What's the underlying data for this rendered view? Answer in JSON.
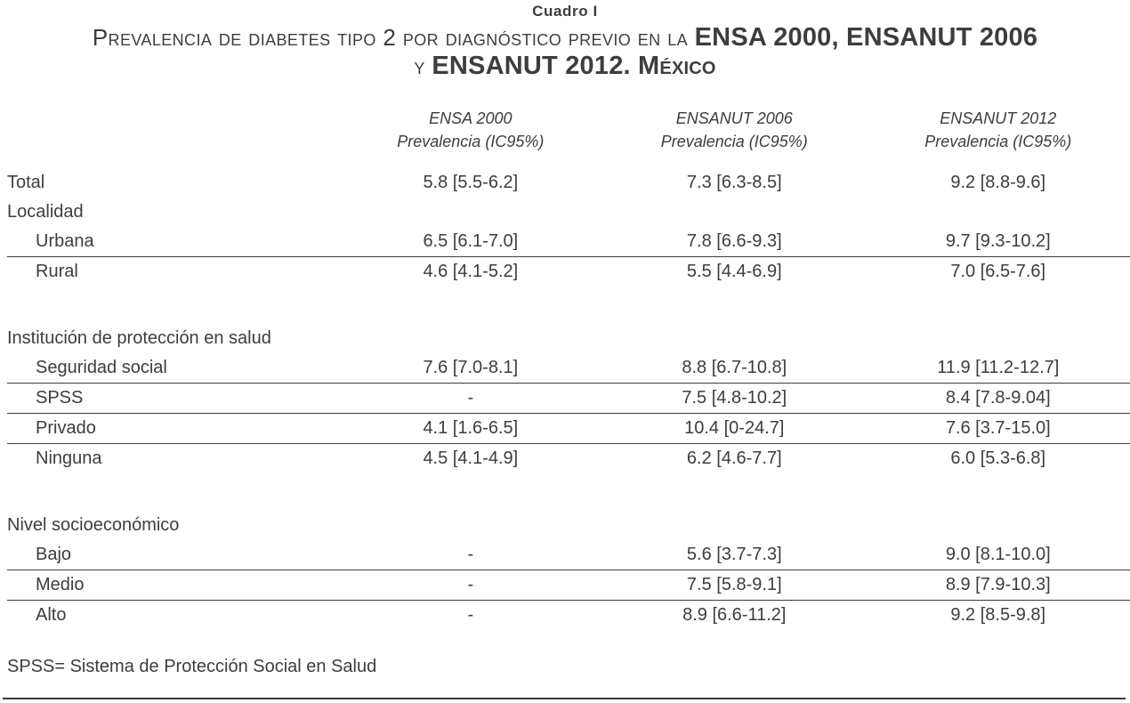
{
  "caption": {
    "label": "Cuadro I",
    "title_line1": {
      "text": "Prevalencia de diabetes tipo 2 por diagnóstico previo en la ",
      "emph": "ENSA 2000, ENSANUT 2006"
    },
    "title_line2": {
      "text": "y ",
      "emph": "ENSANUT 2012. ",
      "emph_sc": "México"
    }
  },
  "header": {
    "columns": [
      {
        "survey": "ENSA 2000",
        "measure": "Prevalencia (IC95%)"
      },
      {
        "survey": "ENSANUT 2006",
        "measure": "Prevalencia (IC95%)"
      },
      {
        "survey": "ENSANUT 2012",
        "measure": "Prevalencia (IC95%)"
      }
    ]
  },
  "colors": {
    "text": "#3d3d3d",
    "rule": "#3d3d3d",
    "background": "#ffffff"
  },
  "chart_data": {
    "type": "table",
    "title": "Cuadro I. Prevalencia de diabetes tipo 2 por diagnóstico previo en la ENSA 2000, ENSANUT 2006 y ENSANUT 2012. México",
    "columns": [
      "",
      "ENSA 2000 Prevalencia (IC95%)",
      "ENSANUT 2006 Prevalencia (IC95%)",
      "ENSANUT 2012 Prevalencia (IC95%)"
    ],
    "rows": [
      {
        "type": "data",
        "label": "Total",
        "indent": false,
        "values": [
          "5.8 [5.5-6.2]",
          "7.3 [6.3-8.5]",
          "9.2 [8.8-9.6]"
        ],
        "rule_below": false
      },
      {
        "type": "group",
        "label": "Localidad"
      },
      {
        "type": "data",
        "label": "Urbana",
        "indent": true,
        "values": [
          "6.5 [6.1-7.0]",
          "7.8 [6.6-9.3]",
          "9.7 [9.3-10.2]"
        ],
        "rule_below": true
      },
      {
        "type": "data",
        "label": "Rural",
        "indent": true,
        "values": [
          "4.6 [4.1-5.2]",
          "5.5 [4.4-6.9]",
          "7.0 [6.5-7.6]"
        ],
        "rule_below": false
      },
      {
        "type": "spacer"
      },
      {
        "type": "group",
        "label": "Institución de protección en salud"
      },
      {
        "type": "data",
        "label": "Seguridad social",
        "indent": true,
        "values": [
          "7.6 [7.0-8.1]",
          "8.8 [6.7-10.8]",
          "11.9 [11.2-12.7]"
        ],
        "rule_below": true
      },
      {
        "type": "data",
        "label": "SPSS",
        "indent": true,
        "values": [
          "-",
          "7.5 [4.8-10.2]",
          "8.4 [7.8-9.04]"
        ],
        "rule_below": true
      },
      {
        "type": "data",
        "label": "Privado",
        "indent": true,
        "values": [
          "4.1 [1.6-6.5]",
          "10.4 [0-24.7]",
          "7.6 [3.7-15.0]"
        ],
        "rule_below": true
      },
      {
        "type": "data",
        "label": "Ninguna",
        "indent": true,
        "values": [
          "4.5 [4.1-4.9]",
          "6.2 [4.6-7.7]",
          "6.0 [5.3-6.8]"
        ],
        "rule_below": false
      },
      {
        "type": "spacer"
      },
      {
        "type": "group",
        "label": "Nivel socioeconómico"
      },
      {
        "type": "data",
        "label": "Bajo",
        "indent": true,
        "values": [
          "-",
          "5.6 [3.7-7.3]",
          "9.0 [8.1-10.0]"
        ],
        "rule_below": true
      },
      {
        "type": "data",
        "label": "Medio",
        "indent": true,
        "values": [
          "-",
          "7.5 [5.8-9.1]",
          "8.9 [7.9-10.3]"
        ],
        "rule_below": true
      },
      {
        "type": "data",
        "label": "Alto",
        "indent": true,
        "values": [
          "-",
          "8.9 [6.6-11.2]",
          "9.2 [8.5-9.8]"
        ],
        "rule_below": false
      }
    ],
    "footnote": "SPSS= Sistema de Protección Social en Salud"
  }
}
